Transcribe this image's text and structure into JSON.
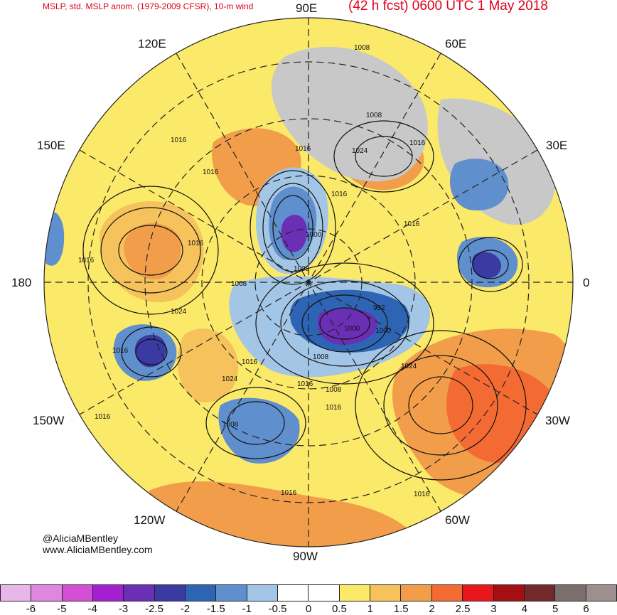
{
  "header": {
    "title_left": "MSLP, std. MSLP anom. (1979-2009 CFSR), 10-m wind",
    "title_right": "(42 h fcst) 0600 UTC 1 May 2018"
  },
  "longitude_labels": {
    "e90": "90E",
    "e60": "60E",
    "e30": "30E",
    "zero": "0",
    "w30": "30W",
    "w60": "60W",
    "w90": "90W",
    "w120": "120W",
    "w150": "150W",
    "dateline": "180",
    "e150": "150E",
    "e120": "120E"
  },
  "isobar_labels": [
    "1008",
    "1008",
    "1016",
    "1024",
    "1016",
    "1016",
    "1016",
    "1016",
    "1000",
    "1008",
    "1016",
    "1016",
    "1024",
    "1008",
    "992",
    "1000",
    "1000",
    "1008",
    "1016",
    "1016",
    "1024",
    "1008",
    "1016",
    "1024",
    "1016",
    "1008",
    "1016",
    "1016",
    "1016",
    "1016"
  ],
  "credit": {
    "handle": "@AliciaMBentley",
    "site": "www.AliciaMBentley.com"
  },
  "colorbar": {
    "colors": [
      "#e8b6e8",
      "#df86df",
      "#d24fd6",
      "#a51fd1",
      "#6b2fb5",
      "#3b3aa3",
      "#2e64b4",
      "#5f8fcd",
      "#a3c6e6",
      "#ffffff",
      "#ffffff",
      "#fbe96a",
      "#f5c25c",
      "#f29d4a",
      "#f36a33",
      "#e8171c",
      "#a40f14",
      "#73282a",
      "#7a6e6e",
      "#9d8f8f"
    ],
    "tick_labels": [
      "-6",
      "-5",
      "-4",
      "-3",
      "-2.5",
      "-2",
      "-1.5",
      "-1",
      "-0.5",
      "0",
      "0.5",
      "1",
      "1.5",
      "2",
      "2.5",
      "3",
      "4",
      "5",
      "6"
    ]
  }
}
